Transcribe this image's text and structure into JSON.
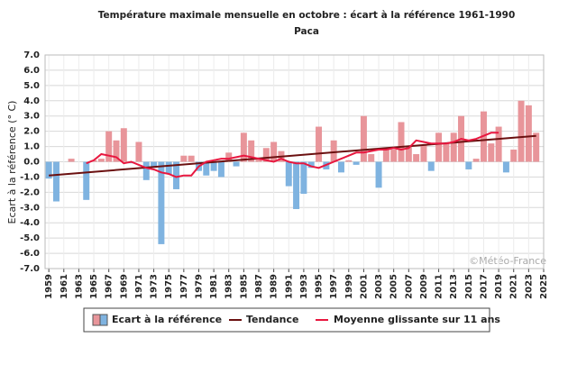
{
  "chart_data": {
    "type": "bar",
    "title": "Température maximale mensuelle en octobre : écart à la référence 1961-1990",
    "subtitle": "Paca",
    "y_label": "Ecart à la référence (° C)",
    "watermark": "©Météo-France",
    "x": [
      1959,
      1960,
      1961,
      1962,
      1963,
      1964,
      1965,
      1966,
      1967,
      1968,
      1969,
      1970,
      1971,
      1972,
      1973,
      1974,
      1975,
      1976,
      1977,
      1978,
      1979,
      1980,
      1981,
      1982,
      1983,
      1984,
      1985,
      1986,
      1987,
      1988,
      1989,
      1990,
      1991,
      1992,
      1993,
      1994,
      1995,
      1996,
      1997,
      1998,
      1999,
      2000,
      2001,
      2002,
      2003,
      2004,
      2005,
      2006,
      2007,
      2008,
      2009,
      2010,
      2011,
      2012,
      2013,
      2014,
      2015,
      2016,
      2017,
      2018,
      2019,
      2020,
      2021,
      2022,
      2023,
      2024
    ],
    "series": [
      {
        "name": "Ecart à la référence",
        "color_positive": "#e8959a",
        "color_negative": "#7fb3e0",
        "values": [
          -1.1,
          -2.6,
          0.0,
          0.2,
          0.0,
          -2.5,
          0.1,
          0.2,
          2.0,
          1.4,
          2.2,
          -0.1,
          1.3,
          -1.2,
          -0.4,
          -5.4,
          -0.8,
          -1.8,
          0.4,
          0.4,
          -0.6,
          -0.9,
          -0.6,
          -1.0,
          0.6,
          -0.3,
          1.9,
          1.4,
          0.2,
          0.9,
          1.3,
          0.7,
          -1.6,
          -3.1,
          -2.1,
          -0.4,
          2.3,
          -0.5,
          1.4,
          -0.7,
          0.1,
          -0.2,
          3.0,
          0.5,
          -1.7,
          0.9,
          0.8,
          2.6,
          1.0,
          0.5,
          1.1,
          -0.6,
          1.9,
          1.2,
          1.9,
          3.0,
          -0.5,
          0.2,
          3.3,
          1.2,
          2.3,
          -0.7,
          0.8,
          4.0,
          3.7,
          1.9
        ]
      },
      {
        "name": "Moyenne glissante sur 11 ans",
        "color": "#e8173f",
        "values": [
          null,
          null,
          null,
          null,
          null,
          -0.1,
          0.1,
          0.5,
          0.4,
          0.3,
          -0.1,
          0.0,
          -0.2,
          -0.4,
          -0.5,
          -0.7,
          -0.8,
          -1.0,
          -0.9,
          -0.9,
          -0.3,
          0.0,
          0.1,
          0.2,
          0.2,
          0.3,
          0.4,
          0.3,
          0.2,
          0.1,
          0.0,
          0.2,
          0.0,
          -0.1,
          -0.1,
          -0.3,
          -0.4,
          -0.2,
          0.0,
          0.2,
          0.4,
          0.6,
          0.6,
          0.7,
          0.8,
          0.8,
          0.9,
          0.8,
          0.9,
          1.4,
          1.3,
          1.2,
          1.2,
          1.2,
          1.3,
          1.5,
          1.4,
          1.5,
          1.7,
          1.9,
          1.9,
          null,
          null,
          null,
          null,
          null
        ]
      }
    ],
    "trend": {
      "name": "Tendance",
      "color": "#6b1010",
      "x": [
        1959,
        2024
      ],
      "values": [
        -0.9,
        1.7
      ]
    },
    "xlim": [
      1958.5,
      2025
    ],
    "xticks": [
      1959,
      1961,
      1963,
      1965,
      1967,
      1969,
      1971,
      1973,
      1975,
      1977,
      1979,
      1981,
      1983,
      1985,
      1987,
      1989,
      1991,
      1993,
      1995,
      1997,
      1999,
      2001,
      2003,
      2005,
      2007,
      2009,
      2011,
      2013,
      2015,
      2017,
      2019,
      2021,
      2023,
      2025
    ],
    "ylim": [
      -7,
      7
    ],
    "yticks": [
      {
        "value": -7,
        "label": "-7.0"
      },
      {
        "value": -6,
        "label": "-6.0"
      },
      {
        "value": -5,
        "label": "-5.0"
      },
      {
        "value": -4,
        "label": "-4.0"
      },
      {
        "value": -3,
        "label": "-3.0"
      },
      {
        "value": -2,
        "label": "-2.0"
      },
      {
        "value": -1,
        "label": "-1.0"
      },
      {
        "value": 0,
        "label": "0.0"
      },
      {
        "value": 1,
        "label": "1.0"
      },
      {
        "value": 2,
        "label": "2.0"
      },
      {
        "value": 3,
        "label": "3.0"
      },
      {
        "value": 4,
        "label": "4.0"
      },
      {
        "value": 5,
        "label": "5.0"
      },
      {
        "value": 6,
        "label": "6.0"
      },
      {
        "value": 7,
        "label": "7.0"
      }
    ],
    "grid": true
  }
}
